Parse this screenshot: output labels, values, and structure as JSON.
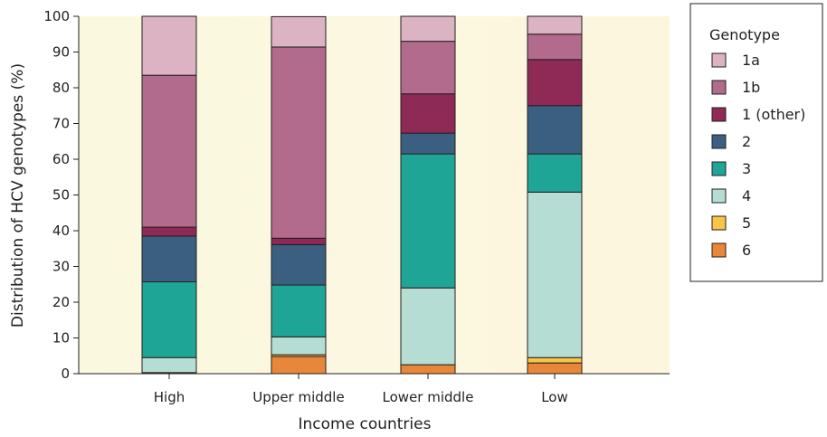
{
  "chart_data": {
    "type": "bar",
    "stacked": true,
    "xlabel": "Income countries",
    "ylabel": "Distribution of HCV genotypes (%)",
    "ylim": [
      0,
      100
    ],
    "yticks": [
      0,
      10,
      20,
      30,
      40,
      50,
      60,
      70,
      80,
      90,
      100
    ],
    "categories": [
      "High",
      "Upper middle",
      "Lower middle",
      "Low"
    ],
    "legend_title": "Genotype",
    "legend_position": "right",
    "series": [
      {
        "name": "6",
        "color": "#e8873a",
        "values": [
          0.3,
          4.8,
          2.5,
          3.0
        ]
      },
      {
        "name": "5",
        "color": "#f7c548",
        "values": [
          0.0,
          0.5,
          0.0,
          1.5
        ]
      },
      {
        "name": "4",
        "color": "#b5ddd3",
        "values": [
          4.2,
          5.0,
          21.5,
          46.3
        ]
      },
      {
        "name": "3",
        "color": "#1fa596",
        "values": [
          21.2,
          14.5,
          37.5,
          10.7
        ]
      },
      {
        "name": "2",
        "color": "#3b5f80",
        "values": [
          12.8,
          11.3,
          5.8,
          13.5
        ]
      },
      {
        "name": "1 (other)",
        "color": "#8e2a55",
        "values": [
          2.5,
          1.8,
          11.0,
          12.9
        ]
      },
      {
        "name": "1b",
        "color": "#b26b8c",
        "values": [
          42.5,
          53.5,
          14.7,
          7.1
        ]
      },
      {
        "name": "1a",
        "color": "#dcb3c2",
        "values": [
          16.5,
          8.5,
          7.0,
          5.0
        ]
      }
    ]
  }
}
